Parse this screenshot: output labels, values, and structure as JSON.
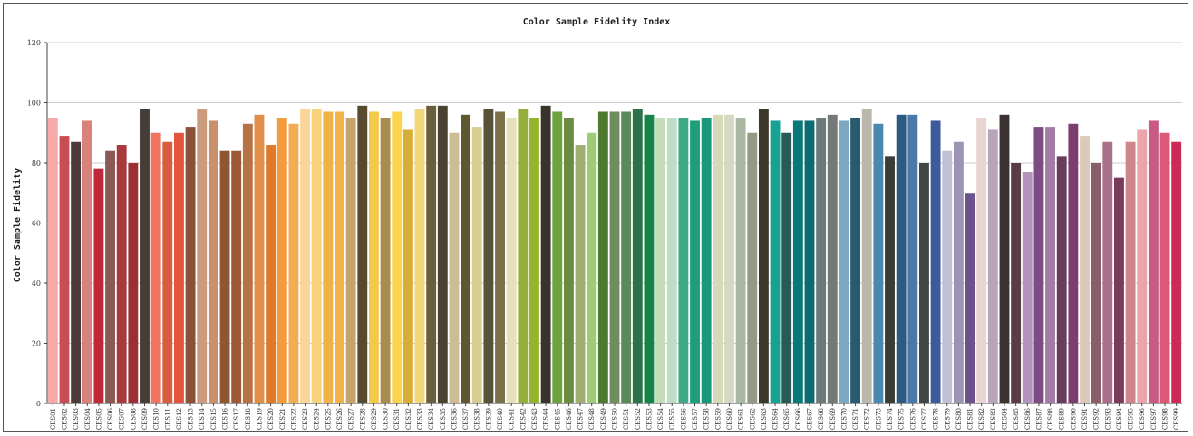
{
  "chart_data": {
    "type": "bar",
    "title": "Color Sample Fidelity Index",
    "xlabel": "",
    "ylabel": "Color Sample Fidelity",
    "ylim": [
      0,
      120
    ],
    "yticks": [
      0,
      20,
      40,
      60,
      80,
      100,
      120
    ],
    "grid": "horizontal",
    "categories": [
      "CES01",
      "CES02",
      "CES03",
      "CES04",
      "CES05",
      "CES06",
      "CES07",
      "CES08",
      "CES09",
      "CES10",
      "CES11",
      "CES12",
      "CES13",
      "CES14",
      "CES15",
      "CES16",
      "CES17",
      "CES18",
      "CES19",
      "CES20",
      "CES21",
      "CES22",
      "CES23",
      "CES24",
      "CES25",
      "CES26",
      "CES27",
      "CES28",
      "CES29",
      "CES30",
      "CES31",
      "CES32",
      "CES33",
      "CES34",
      "CES35",
      "CES36",
      "CES37",
      "CES38",
      "CES39",
      "CES40",
      "CES41",
      "CES42",
      "CES43",
      "CES44",
      "CES45",
      "CES46",
      "CES47",
      "CES48",
      "CES49",
      "CES50",
      "CES51",
      "CES52",
      "CES53",
      "CES54",
      "CES55",
      "CES56",
      "CES57",
      "CES58",
      "CES59",
      "CES60",
      "CES61",
      "CES62",
      "CES63",
      "CES64",
      "CES65",
      "CES66",
      "CES67",
      "CES68",
      "CES69",
      "CES70",
      "CES71",
      "CES72",
      "CES73",
      "CES74",
      "CES75",
      "CES76",
      "CES77",
      "CES78",
      "CES79",
      "CES80",
      "CES81",
      "CES82",
      "CES83",
      "CES84",
      "CES85",
      "CES86",
      "CES87",
      "CES88",
      "CES89",
      "CES90",
      "CES91",
      "CES92",
      "CES93",
      "CES94",
      "CES95",
      "CES96",
      "CES97",
      "CES98",
      "CES99"
    ],
    "values": [
      95,
      89,
      87,
      94,
      78,
      84,
      86,
      80,
      98,
      90,
      87,
      90,
      92,
      98,
      94,
      84,
      84,
      93,
      96,
      86,
      95,
      93,
      98,
      98,
      97,
      97,
      95,
      99,
      97,
      95,
      97,
      91,
      98,
      99,
      99,
      90,
      96,
      92,
      98,
      97,
      95,
      98,
      95,
      99,
      97,
      95,
      86,
      90,
      97,
      97,
      97,
      98,
      96,
      95,
      95,
      95,
      94,
      95,
      96,
      96,
      95,
      90,
      98,
      94,
      90,
      94,
      94,
      95,
      96,
      94,
      95,
      98,
      93,
      82,
      96,
      96,
      80,
      94,
      84,
      87,
      70,
      95,
      91,
      96,
      80,
      77,
      92,
      92,
      82,
      93,
      89,
      80,
      87,
      75,
      87,
      91,
      94,
      90,
      87
    ],
    "colors": [
      "#f7a8a8",
      "#c84e55",
      "#4d3a3a",
      "#d9827c",
      "#c0283a",
      "#8c5a54",
      "#a83a3e",
      "#9b2f33",
      "#463c38",
      "#ee7660",
      "#d95c3e",
      "#e4543c",
      "#8b5038",
      "#cc9a7c",
      "#c9906b",
      "#8f5634",
      "#9b5a36",
      "#b57244",
      "#e08e48",
      "#e07a28",
      "#f49c3c",
      "#f3ac52",
      "#fad69a",
      "#f9d27c",
      "#eeb245",
      "#f3b447",
      "#c5a36a",
      "#574a30",
      "#f4c849",
      "#a98c4e",
      "#fbd44c",
      "#d9ac36",
      "#f1d77a",
      "#6b5e3c",
      "#4a4330",
      "#cdbc94",
      "#5e5730",
      "#d8cc92",
      "#585236",
      "#7a7048",
      "#e6e1b8",
      "#95b03c",
      "#95b42e",
      "#38342c",
      "#6da23c",
      "#6b8c40",
      "#9fae72",
      "#9ccc74",
      "#4e7a30",
      "#6d8c60",
      "#5b8a5a",
      "#2b7248",
      "#148448",
      "#c4dcb8",
      "#bfdcc4",
      "#3fa884",
      "#1f9e7a",
      "#17987a",
      "#d6d9b8",
      "#d6d8c2",
      "#a8b8a2",
      "#969886",
      "#3c382c",
      "#18a294",
      "#2a5a58",
      "#087878",
      "#0d6c72",
      "#6b7a7a",
      "#747a78",
      "#7ea8c0",
      "#2b5a70",
      "#bab8ac",
      "#4a88b0",
      "#3a3c38",
      "#2c5a82",
      "#4a78a8",
      "#404846",
      "#3c5a9c",
      "#c0c0d4",
      "#9c94b4",
      "#6c528c",
      "#e8d4d0",
      "#b8a4b8",
      "#3c3232",
      "#5c3c44",
      "#b494bc",
      "#7c4c82",
      "#a27ca4",
      "#6a3c5c",
      "#7c3e6e",
      "#dccab8",
      "#8a5e68",
      "#a8708a",
      "#7a3a5a",
      "#d0848c",
      "#eca4ac",
      "#c85a84",
      "#dc5a78",
      "#cc2a54"
    ]
  }
}
